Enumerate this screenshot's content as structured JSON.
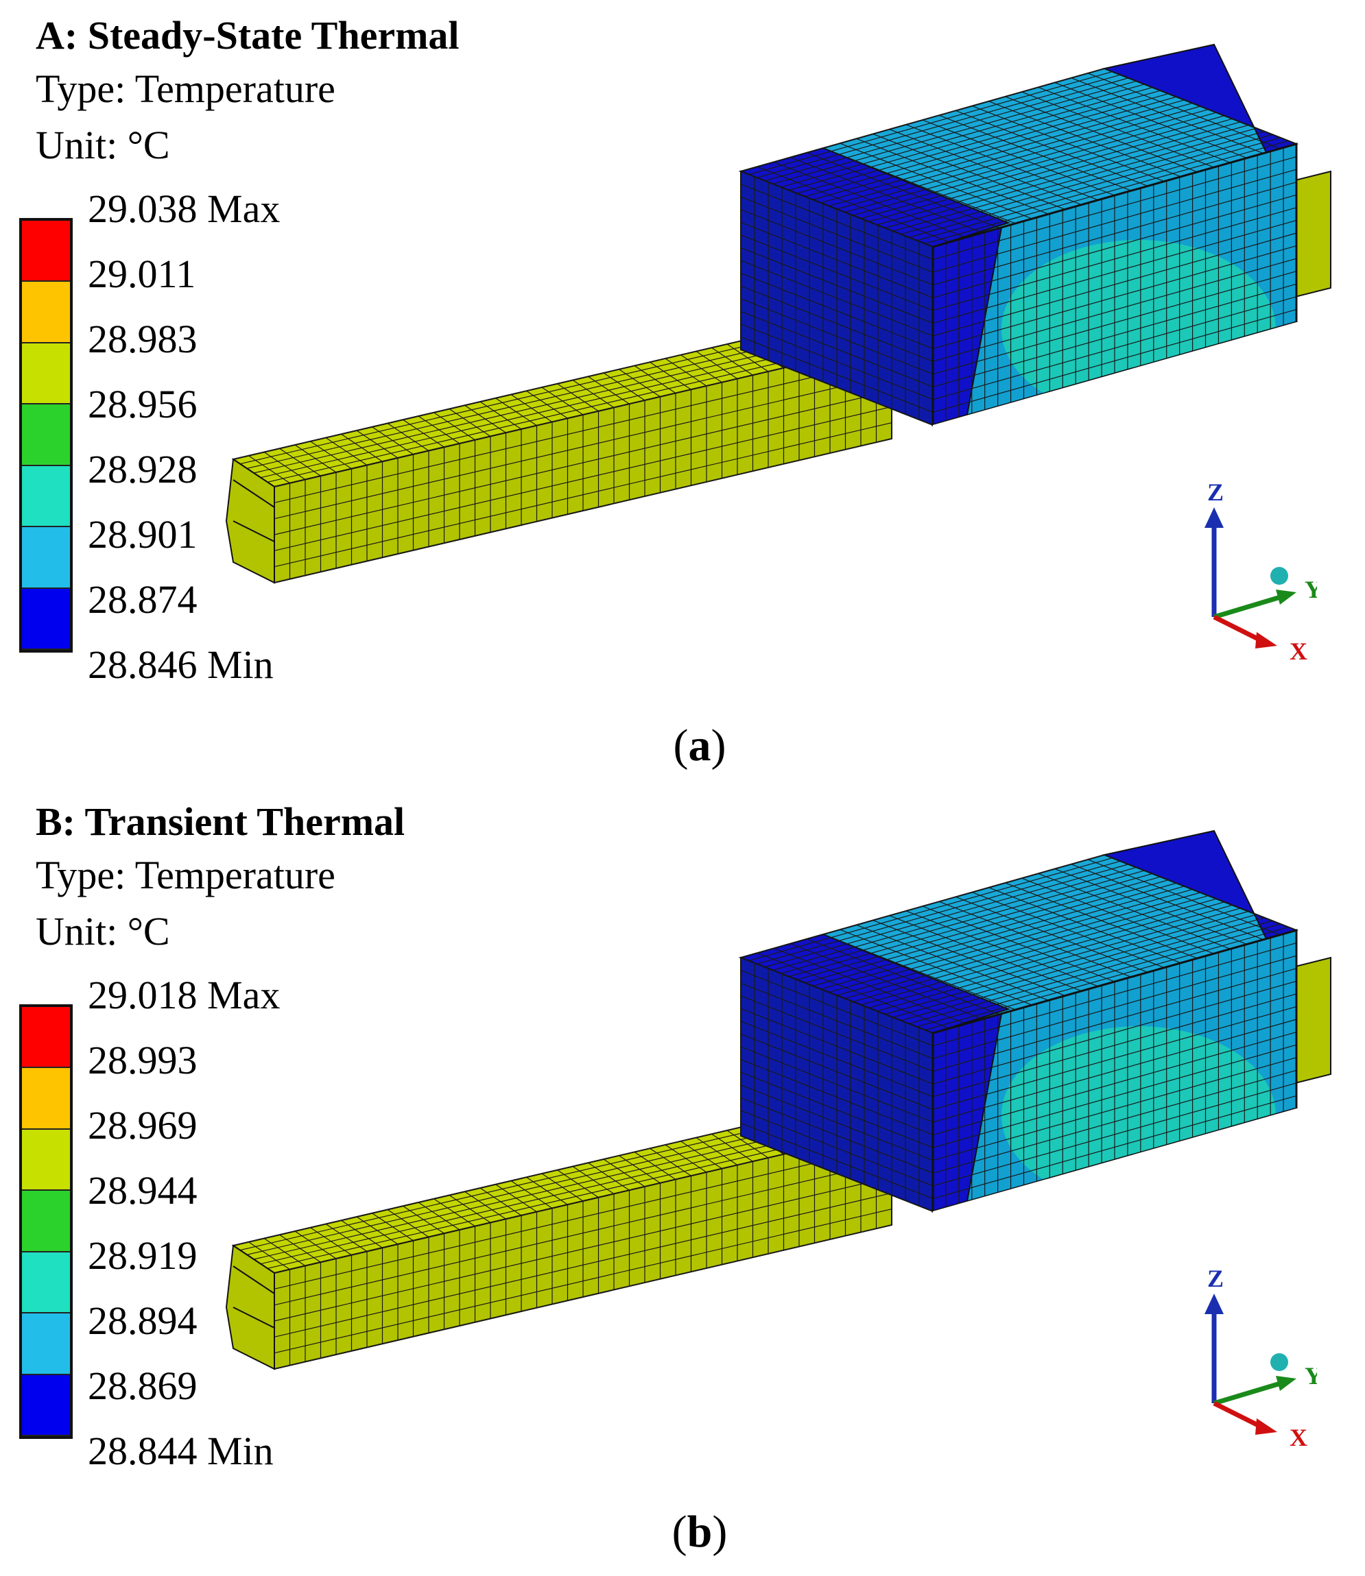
{
  "panels": [
    {
      "id": "a",
      "title": "A: Steady-State Thermal",
      "type_line": "Type: Temperature",
      "unit_line": "Unit: °C",
      "legend_labels": [
        "29.038 Max",
        "29.011",
        "28.983",
        "28.956",
        "28.928",
        "28.901",
        "28.874",
        "28.846 Min"
      ],
      "caption_open": "(",
      "caption_letter": "a",
      "caption_close": ")"
    },
    {
      "id": "b",
      "title": "B: Transient Thermal",
      "type_line": "Type: Temperature",
      "unit_line": "Unit: °C",
      "legend_labels": [
        "29.018 Max",
        "28.993",
        "28.969",
        "28.944",
        "28.919",
        "28.894",
        "28.869",
        "28.844 Min"
      ],
      "caption_open": "(",
      "caption_letter": "b",
      "caption_close": ")"
    }
  ],
  "legend_colors": [
    "#ff0000",
    "#ffc400",
    "#c8e000",
    "#2bd22b",
    "#1fe0c0",
    "#22bde8",
    "#0000ee"
  ],
  "model_colors": {
    "rail_top": "#c4d600",
    "rail_side": "#b2c400",
    "block_end": "#0d1aa8",
    "block_cold": "#1010c8",
    "block_mid": "#18a8d8",
    "block_warm": "#1cc8b8",
    "block_side": "#12a0d0"
  },
  "axes": {
    "z": "Z",
    "y": "Y",
    "x": "X"
  },
  "axis_colors": {
    "z": "#1a2fb0",
    "y": "#1a8a1a",
    "x": "#d01010",
    "origin": "#20b0b0"
  }
}
